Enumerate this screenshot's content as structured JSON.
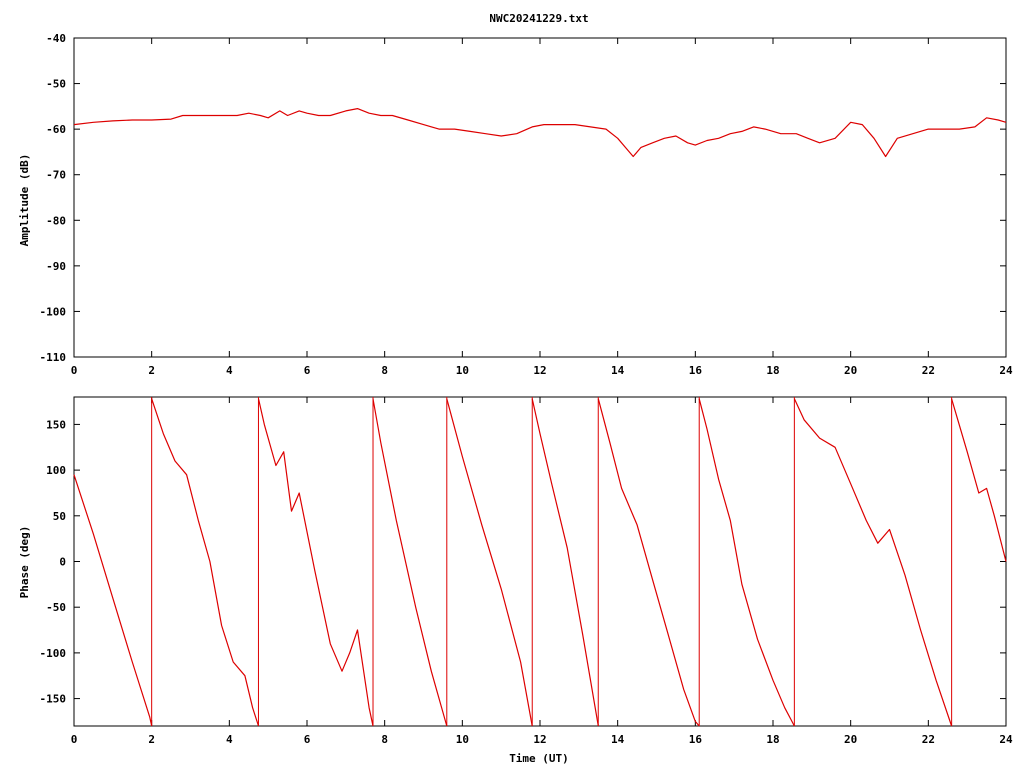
{
  "chart_data": [
    {
      "type": "line",
      "title": "NWC20241229.txt",
      "xlabel": "",
      "ylabel": "Amplitude (dB)",
      "xlim": [
        0,
        24
      ],
      "ylim": [
        -110,
        -40
      ],
      "xticks": [
        "0",
        "2",
        "4",
        "6",
        "8",
        "10",
        "12",
        "14",
        "16",
        "18",
        "20",
        "22",
        "24"
      ],
      "yticks": [
        "-40",
        "-50",
        "-60",
        "-70",
        "-80",
        "-90",
        "-100",
        "-110"
      ],
      "grid": false,
      "line_color": "#dd0000",
      "x": [
        0,
        0.5,
        1,
        1.5,
        2,
        2.5,
        2.8,
        3,
        3.3,
        3.6,
        3.9,
        4.2,
        4.5,
        4.8,
        5,
        5.3,
        5.5,
        5.8,
        6,
        6.3,
        6.6,
        7,
        7.3,
        7.6,
        7.9,
        8.2,
        8.6,
        9,
        9.4,
        9.8,
        10.2,
        10.6,
        11,
        11.4,
        11.8,
        12.1,
        12.5,
        12.9,
        13.3,
        13.7,
        14,
        14.2,
        14.4,
        14.6,
        14.9,
        15.2,
        15.5,
        15.8,
        16,
        16.3,
        16.6,
        16.9,
        17.2,
        17.5,
        17.8,
        18.2,
        18.6,
        18.9,
        19.2,
        19.6,
        20,
        20.3,
        20.6,
        20.9,
        21.2,
        21.6,
        22,
        22.4,
        22.8,
        23.2,
        23.5,
        23.8,
        24
      ],
      "y": [
        -59,
        -58.5,
        -58.2,
        -58,
        -58,
        -57.8,
        -57,
        -57,
        -57,
        -57,
        -57,
        -57,
        -56.5,
        -57,
        -57.5,
        -56,
        -57,
        -56,
        -56.5,
        -57,
        -57,
        -56,
        -55.5,
        -56.5,
        -57,
        -57,
        -58,
        -59,
        -60,
        -60,
        -60.5,
        -61,
        -61.5,
        -61,
        -59.5,
        -59,
        -59,
        -59,
        -59.5,
        -60,
        -62,
        -64,
        -66,
        -64,
        -63,
        -62,
        -61.5,
        -63,
        -63.5,
        -62.5,
        -62,
        -61,
        -60.5,
        -59.5,
        -60,
        -61,
        -61,
        -62,
        -63,
        -62,
        -58.5,
        -59,
        -62,
        -66,
        -62,
        -61,
        -60,
        -60,
        -60,
        -59.5,
        -57.5,
        -58,
        -58.5
      ]
    },
    {
      "type": "line",
      "title": "",
      "xlabel": "Time (UT)",
      "ylabel": "Phase (deg)",
      "xlim": [
        0,
        24
      ],
      "ylim": [
        -180,
        180
      ],
      "xticks": [
        "0",
        "2",
        "4",
        "6",
        "8",
        "10",
        "12",
        "14",
        "16",
        "18",
        "20",
        "22",
        "24"
      ],
      "yticks": [
        "150",
        "100",
        "50",
        "0",
        "-50",
        "-100",
        "-150"
      ],
      "grid": false,
      "line_color": "#dd0000",
      "series": [
        {
          "x": [
            0,
            0.5,
            1,
            1.5,
            1.95,
            2
          ],
          "y": [
            95,
            30,
            -40,
            -110,
            -170,
            -180
          ]
        },
        {
          "x": [
            2,
            2.3,
            2.6,
            2.9,
            3.2,
            3.5,
            3.8,
            4.1,
            4.4,
            4.6,
            4.75
          ],
          "y": [
            178,
            140,
            110,
            95,
            45,
            0,
            -70,
            -110,
            -125,
            -160,
            -180
          ]
        },
        {
          "x": [
            4.75,
            4.9,
            5.2,
            5.4,
            5.6,
            5.8,
            6.2,
            6.6,
            6.9,
            7.1,
            7.3,
            7.6,
            7.7
          ],
          "y": [
            178,
            150,
            105,
            120,
            55,
            75,
            -10,
            -90,
            -120,
            -100,
            -75,
            -160,
            -180
          ]
        },
        {
          "x": [
            7.7,
            7.9,
            8.3,
            8.8,
            9.2,
            9.6
          ],
          "y": [
            178,
            130,
            45,
            -50,
            -120,
            -180
          ]
        },
        {
          "x": [
            9.6,
            10,
            10.5,
            11,
            11.5,
            11.8
          ],
          "y": [
            178,
            115,
            40,
            -30,
            -110,
            -180
          ]
        },
        {
          "x": [
            11.8,
            12,
            12.3,
            12.7,
            13.1,
            13.5
          ],
          "y": [
            178,
            140,
            85,
            15,
            -80,
            -180
          ]
        },
        {
          "x": [
            13.5,
            13.8,
            14.1,
            14.5,
            14.9,
            15.3,
            15.7,
            16,
            16.1
          ],
          "y": [
            178,
            130,
            80,
            40,
            -20,
            -80,
            -140,
            -175,
            -180
          ]
        },
        {
          "x": [
            16.1,
            16.3,
            16.6,
            16.9,
            17.2,
            17.6,
            18,
            18.3,
            18.55
          ],
          "y": [
            178,
            145,
            90,
            45,
            -25,
            -85,
            -130,
            -160,
            -180
          ]
        },
        {
          "x": [
            18.55,
            18.8,
            19.2,
            19.6,
            20,
            20.4,
            20.7,
            21,
            21.4,
            21.8,
            22.2,
            22.6
          ],
          "y": [
            178,
            155,
            135,
            125,
            85,
            45,
            20,
            35,
            -15,
            -75,
            -130,
            -180
          ]
        },
        {
          "x": [
            22.6,
            23,
            23.3,
            23.5,
            23.7,
            24
          ],
          "y": [
            178,
            120,
            75,
            80,
            50,
            0
          ]
        }
      ],
      "wrap_lines_x": [
        2,
        4.75,
        7.7,
        9.6,
        11.8,
        13.5,
        16.1,
        18.55,
        22.6
      ]
    }
  ]
}
